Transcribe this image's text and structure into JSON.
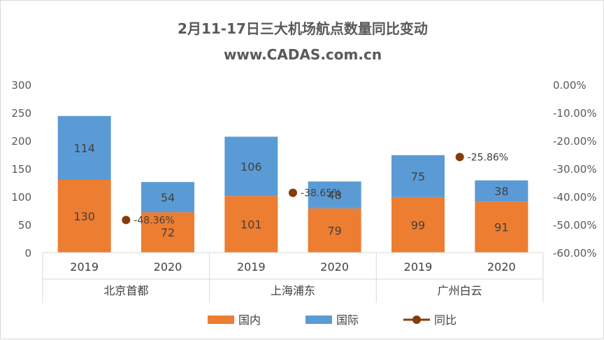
{
  "chart_data": {
    "type": "bar",
    "stacked": true,
    "title": "2月11-17日三大机场航点数量同比变动",
    "subtitle": "www.CADAS.com.cn",
    "groups": [
      "北京首都",
      "上海浦东",
      "广州白云"
    ],
    "categories": [
      "2019",
      "2020",
      "2019",
      "2020",
      "2019",
      "2020"
    ],
    "series": [
      {
        "name": "国内",
        "values": [
          130,
          72,
          101,
          79,
          99,
          91
        ],
        "color": "#ED7D31"
      },
      {
        "name": "国际",
        "values": [
          114,
          54,
          106,
          48,
          75,
          38
        ],
        "color": "#5B9BD5"
      }
    ],
    "line_series": {
      "name": "同比",
      "values": [
        -48.36,
        -38.65,
        -25.86
      ],
      "labels": [
        "-48.36%",
        "-38.65%",
        "-25.86%"
      ],
      "color": "#843C0C"
    },
    "ylim": [
      0,
      300
    ],
    "yticks": [
      "0",
      "50",
      "100",
      "150",
      "200",
      "250",
      "300"
    ],
    "y2lim": [
      -60,
      0
    ],
    "y2ticks": [
      "0.00%",
      "-10.00%",
      "-20.00%",
      "-30.00%",
      "-40.00%",
      "-50.00%",
      "-60.00%"
    ],
    "legend_position": "bottom",
    "grid": false
  }
}
